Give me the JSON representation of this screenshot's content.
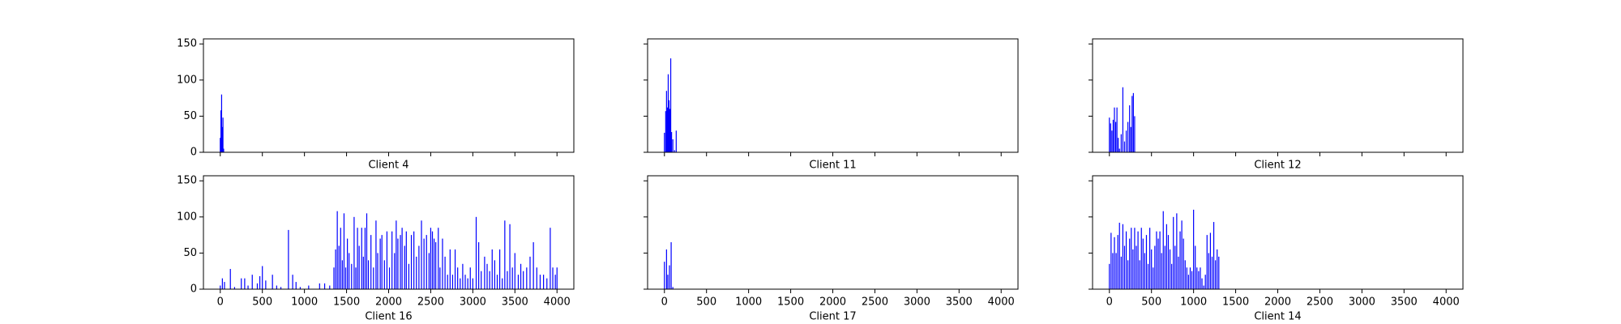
{
  "chart_data": [
    {
      "type": "bar",
      "xlabel": "Client 4",
      "color": "blue",
      "x": [
        0,
        8,
        16,
        24,
        32,
        40
      ],
      "values": [
        20,
        58,
        80,
        35,
        48,
        5
      ],
      "xlim": [
        -200,
        4200
      ],
      "ylim": [
        0,
        157
      ],
      "xticks": [
        0,
        500,
        1000,
        1500,
        2000,
        2500,
        3000,
        3500,
        4000
      ],
      "yticks": [
        0,
        50,
        100,
        150
      ],
      "show_xtick_labels": false,
      "show_ytick_labels": true
    },
    {
      "type": "bar",
      "xlabel": "Client 11",
      "color": "blue",
      "x": [
        0,
        15,
        25,
        35,
        45,
        55,
        65,
        75,
        85,
        100,
        120,
        140
      ],
      "values": [
        27,
        57,
        85,
        62,
        108,
        72,
        60,
        130,
        28,
        18,
        3,
        30
      ],
      "xlim": [
        -200,
        4200
      ],
      "ylim": [
        0,
        157
      ],
      "xticks": [
        0,
        500,
        1000,
        1500,
        2000,
        2500,
        3000,
        3500,
        4000
      ],
      "yticks": [
        0,
        50,
        100,
        150
      ],
      "show_xtick_labels": false,
      "show_ytick_labels": false
    },
    {
      "type": "bar",
      "xlabel": "Client 12",
      "color": "blue",
      "x": [
        0,
        15,
        30,
        45,
        60,
        75,
        90,
        105,
        120,
        140,
        160,
        180,
        200,
        220,
        240,
        255,
        270,
        285,
        300
      ],
      "values": [
        48,
        40,
        30,
        45,
        62,
        42,
        62,
        20,
        5,
        25,
        90,
        15,
        30,
        42,
        65,
        35,
        78,
        82,
        50
      ],
      "xlim": [
        -200,
        4200
      ],
      "ylim": [
        0,
        157
      ],
      "xticks": [
        0,
        500,
        1000,
        1500,
        2000,
        2500,
        3000,
        3500,
        4000
      ],
      "yticks": [
        0,
        50,
        100,
        150
      ],
      "show_xtick_labels": false,
      "show_ytick_labels": false
    },
    {
      "type": "bar",
      "xlabel": "Client 16",
      "color": "blue",
      "x": [
        0,
        25,
        50,
        120,
        170,
        250,
        290,
        330,
        380,
        440,
        470,
        500,
        540,
        620,
        670,
        720,
        810,
        860,
        900,
        950,
        1050,
        1180,
        1240,
        1300,
        1350,
        1370,
        1390,
        1410,
        1430,
        1450,
        1470,
        1490,
        1510,
        1530,
        1560,
        1590,
        1610,
        1630,
        1650,
        1680,
        1700,
        1720,
        1740,
        1760,
        1790,
        1820,
        1850,
        1870,
        1900,
        1920,
        1950,
        1980,
        2010,
        2040,
        2070,
        2090,
        2110,
        2140,
        2160,
        2190,
        2210,
        2240,
        2270,
        2300,
        2330,
        2360,
        2390,
        2420,
        2450,
        2480,
        2500,
        2520,
        2540,
        2560,
        2590,
        2610,
        2640,
        2670,
        2700,
        2730,
        2760,
        2790,
        2820,
        2850,
        2880,
        2910,
        2940,
        2970,
        3000,
        3040,
        3070,
        3100,
        3140,
        3170,
        3200,
        3230,
        3260,
        3290,
        3320,
        3350,
        3380,
        3410,
        3440,
        3470,
        3500,
        3540,
        3570,
        3600,
        3640,
        3680,
        3720,
        3760,
        3800,
        3840,
        3880,
        3920,
        3950,
        3980,
        4000
      ],
      "values": [
        5,
        15,
        10,
        28,
        3,
        15,
        15,
        5,
        20,
        8,
        18,
        32,
        12,
        20,
        5,
        3,
        82,
        20,
        10,
        3,
        5,
        8,
        8,
        5,
        30,
        55,
        108,
        60,
        85,
        40,
        105,
        30,
        70,
        50,
        35,
        100,
        30,
        85,
        60,
        85,
        45,
        85,
        105,
        40,
        75,
        30,
        95,
        50,
        70,
        75,
        40,
        80,
        30,
        80,
        50,
        95,
        70,
        75,
        85,
        60,
        80,
        35,
        75,
        80,
        45,
        60,
        95,
        70,
        75,
        50,
        85,
        80,
        70,
        65,
        85,
        30,
        70,
        45,
        20,
        55,
        20,
        55,
        30,
        15,
        35,
        20,
        15,
        30,
        15,
        100,
        65,
        25,
        45,
        35,
        25,
        55,
        40,
        20,
        55,
        15,
        95,
        25,
        90,
        30,
        50,
        20,
        35,
        25,
        30,
        45,
        65,
        30,
        20,
        20,
        15,
        85,
        30,
        20,
        30
      ],
      "xlim": [
        -200,
        4200
      ],
      "ylim": [
        0,
        157
      ],
      "xticks": [
        0,
        500,
        1000,
        1500,
        2000,
        2500,
        3000,
        3500,
        4000
      ],
      "yticks": [
        0,
        50,
        100,
        150
      ],
      "show_xtick_labels": true,
      "show_ytick_labels": true
    },
    {
      "type": "bar",
      "xlabel": "Client 17",
      "color": "blue",
      "x": [
        0,
        25,
        40,
        60,
        80,
        100
      ],
      "values": [
        38,
        55,
        20,
        33,
        65,
        3
      ],
      "xlim": [
        -200,
        4200
      ],
      "ylim": [
        0,
        157
      ],
      "xticks": [
        0,
        500,
        1000,
        1500,
        2000,
        2500,
        3000,
        3500,
        4000
      ],
      "yticks": [
        0,
        50,
        100,
        150
      ],
      "show_xtick_labels": true,
      "show_ytick_labels": false
    },
    {
      "type": "bar",
      "xlabel": "Client 14",
      "color": "blue",
      "x": [
        0,
        20,
        40,
        60,
        80,
        100,
        120,
        140,
        160,
        180,
        200,
        220,
        240,
        260,
        280,
        300,
        320,
        340,
        360,
        380,
        400,
        420,
        440,
        460,
        480,
        500,
        520,
        540,
        560,
        580,
        600,
        620,
        640,
        660,
        680,
        700,
        720,
        740,
        760,
        780,
        800,
        820,
        840,
        860,
        880,
        900,
        920,
        940,
        960,
        980,
        1000,
        1020,
        1040,
        1060,
        1080,
        1100,
        1120,
        1140,
        1160,
        1180,
        1200,
        1220,
        1240,
        1260,
        1280,
        1300
      ],
      "values": [
        35,
        78,
        50,
        72,
        50,
        75,
        92,
        45,
        90,
        60,
        80,
        40,
        70,
        85,
        55,
        85,
        60,
        80,
        40,
        85,
        70,
        50,
        75,
        35,
        85,
        55,
        30,
        60,
        80,
        70,
        80,
        50,
        108,
        60,
        90,
        75,
        55,
        35,
        100,
        60,
        105,
        45,
        80,
        95,
        70,
        40,
        30,
        20,
        30,
        25,
        110,
        60,
        30,
        25,
        30,
        15,
        5,
        20,
        75,
        50,
        78,
        45,
        93,
        40,
        55,
        45
      ],
      "xlim": [
        -200,
        4200
      ],
      "ylim": [
        0,
        157
      ],
      "xticks": [
        0,
        500,
        1000,
        1500,
        2000,
        2500,
        3000,
        3500,
        4000
      ],
      "yticks": [
        0,
        50,
        100,
        150
      ],
      "show_xtick_labels": true,
      "show_ytick_labels": false
    }
  ]
}
